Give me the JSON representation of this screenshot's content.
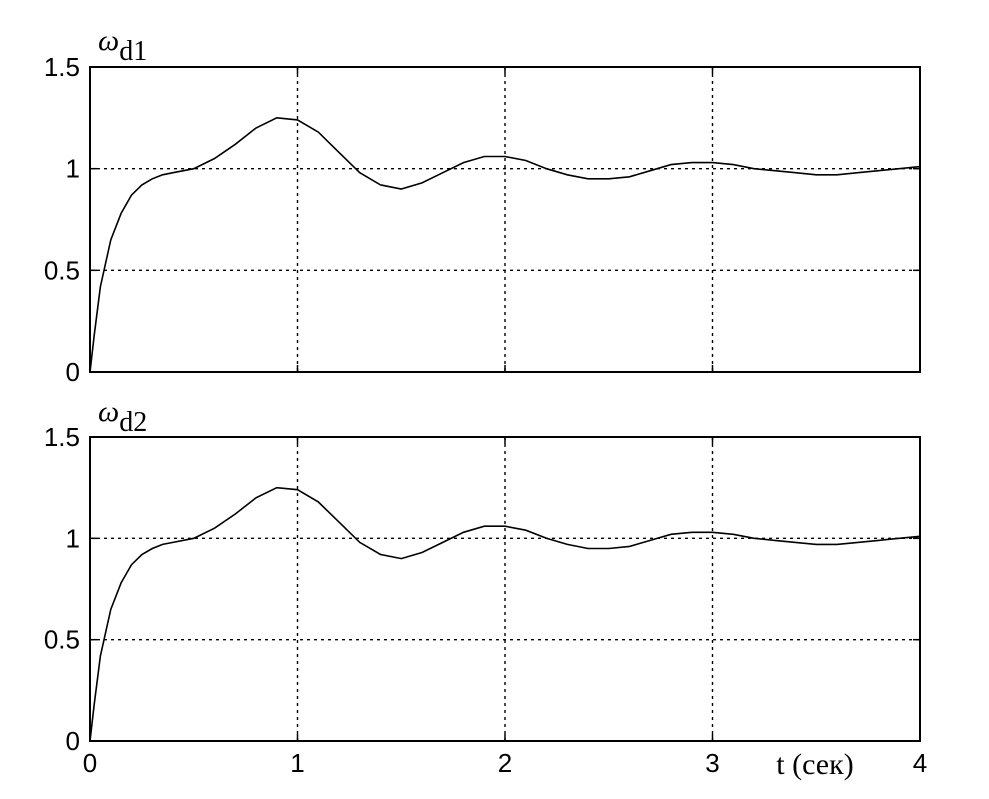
{
  "chart_data": [
    {
      "type": "line",
      "title": "ω_d1",
      "ylabel_symbol": "ω",
      "ylabel_sub": "d1",
      "xlabel": "",
      "xlim": [
        0,
        4
      ],
      "ylim": [
        0,
        1.5
      ],
      "xticks": [
        0,
        1,
        2,
        3,
        4
      ],
      "xtick_labels": [
        "",
        "",
        "",
        "",
        ""
      ],
      "yticks": [
        0,
        0.5,
        1,
        1.5
      ],
      "ytick_labels": [
        "0",
        "0.5",
        "1",
        "1.5"
      ],
      "grid": true,
      "series": [
        {
          "x": [
            0,
            0.02,
            0.05,
            0.1,
            0.15,
            0.2,
            0.25,
            0.3,
            0.35,
            0.4,
            0.5,
            0.6,
            0.7,
            0.8,
            0.9,
            1.0,
            1.1,
            1.2,
            1.3,
            1.4,
            1.5,
            1.6,
            1.7,
            1.8,
            1.9,
            2.0,
            2.1,
            2.2,
            2.3,
            2.4,
            2.5,
            2.6,
            2.7,
            2.8,
            2.9,
            3.0,
            3.1,
            3.2,
            3.3,
            3.4,
            3.5,
            3.6,
            3.7,
            3.8,
            3.9,
            4.0
          ],
          "y": [
            0,
            0.18,
            0.42,
            0.65,
            0.78,
            0.87,
            0.92,
            0.95,
            0.97,
            0.98,
            1.0,
            1.05,
            1.12,
            1.2,
            1.25,
            1.24,
            1.18,
            1.08,
            0.98,
            0.92,
            0.9,
            0.93,
            0.98,
            1.03,
            1.06,
            1.06,
            1.04,
            1.0,
            0.97,
            0.95,
            0.95,
            0.96,
            0.99,
            1.02,
            1.03,
            1.03,
            1.02,
            1.0,
            0.99,
            0.98,
            0.97,
            0.97,
            0.98,
            0.99,
            1.0,
            1.01
          ]
        }
      ]
    },
    {
      "type": "line",
      "title": "ω_d2",
      "ylabel_symbol": "ω",
      "ylabel_sub": "d2",
      "xlabel": "t (сек)",
      "xlim": [
        0,
        4
      ],
      "ylim": [
        0,
        1.5
      ],
      "xticks": [
        0,
        1,
        2,
        3,
        4
      ],
      "xtick_labels": [
        "0",
        "1",
        "2",
        "3",
        "4"
      ],
      "yticks": [
        0,
        0.5,
        1,
        1.5
      ],
      "ytick_labels": [
        "0",
        "0.5",
        "1",
        "1.5"
      ],
      "grid": true,
      "series": [
        {
          "x": [
            0,
            0.02,
            0.05,
            0.1,
            0.15,
            0.2,
            0.25,
            0.3,
            0.35,
            0.4,
            0.5,
            0.6,
            0.7,
            0.8,
            0.9,
            1.0,
            1.1,
            1.2,
            1.3,
            1.4,
            1.5,
            1.6,
            1.7,
            1.8,
            1.9,
            2.0,
            2.1,
            2.2,
            2.3,
            2.4,
            2.5,
            2.6,
            2.7,
            2.8,
            2.9,
            3.0,
            3.1,
            3.2,
            3.3,
            3.4,
            3.5,
            3.6,
            3.7,
            3.8,
            3.9,
            4.0
          ],
          "y": [
            0,
            0.18,
            0.42,
            0.65,
            0.78,
            0.87,
            0.92,
            0.95,
            0.97,
            0.98,
            1.0,
            1.05,
            1.12,
            1.2,
            1.25,
            1.24,
            1.18,
            1.08,
            0.98,
            0.92,
            0.9,
            0.93,
            0.98,
            1.03,
            1.06,
            1.06,
            1.04,
            1.0,
            0.97,
            0.95,
            0.95,
            0.96,
            0.99,
            1.02,
            1.03,
            1.03,
            1.02,
            1.0,
            0.99,
            0.98,
            0.97,
            0.97,
            0.98,
            0.99,
            1.0,
            1.01
          ]
        }
      ]
    }
  ]
}
